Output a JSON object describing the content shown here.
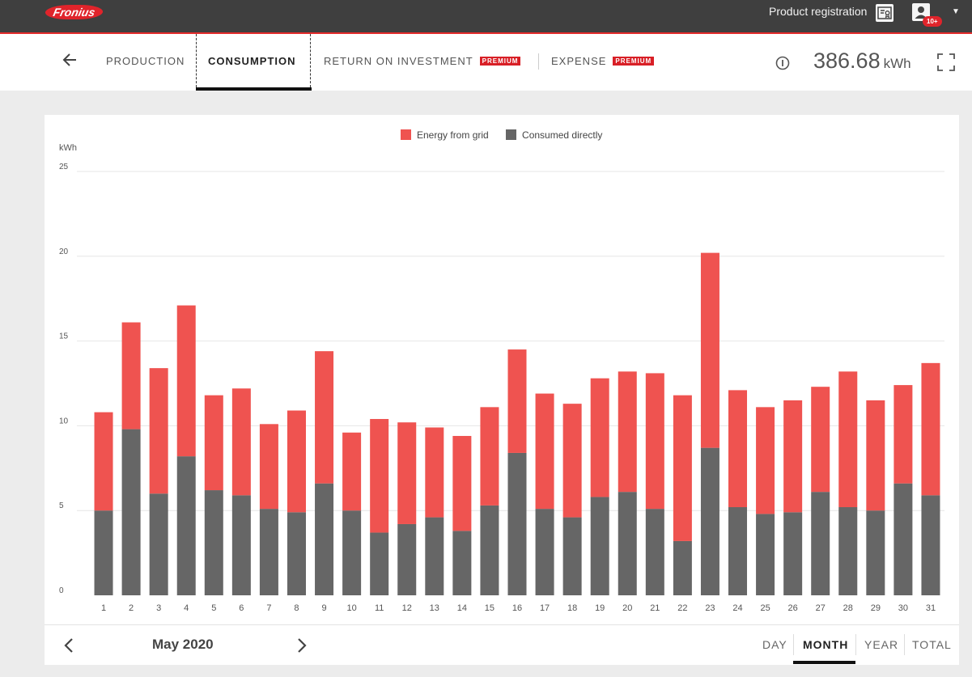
{
  "header": {
    "logo_text": "Fronius",
    "product_registration": "Product registration",
    "notification_badge": "10+"
  },
  "nav": {
    "tabs": [
      {
        "label": "PRODUCTION"
      },
      {
        "label": "CONSUMPTION"
      },
      {
        "label": "RETURN ON INVESTMENT",
        "badge": "PREMIUM"
      },
      {
        "label": "EXPENSE",
        "badge": "PREMIUM"
      }
    ],
    "active_tab": "CONSUMPTION",
    "total_value": "386.68",
    "total_unit": "kWh"
  },
  "period": {
    "label": "May 2020",
    "options": [
      "DAY",
      "MONTH",
      "YEAR",
      "TOTAL"
    ],
    "active": "MONTH"
  },
  "colors": {
    "grid_energy": "#ef5350",
    "consumed_directly": "#666666",
    "brand_red": "#e0242b"
  },
  "chart_data": {
    "type": "bar",
    "stacked": true,
    "ylabel": "kWh",
    "ylim": [
      0,
      25
    ],
    "yticks": [
      0,
      5,
      10,
      15,
      20,
      25
    ],
    "legend_position": "top-center",
    "categories": [
      "1",
      "2",
      "3",
      "4",
      "5",
      "6",
      "7",
      "8",
      "9",
      "10",
      "11",
      "12",
      "13",
      "14",
      "15",
      "16",
      "17",
      "18",
      "19",
      "20",
      "21",
      "22",
      "23",
      "24",
      "25",
      "26",
      "27",
      "28",
      "29",
      "30",
      "31"
    ],
    "series": [
      {
        "name": "Consumed directly",
        "values": [
          5.0,
          9.8,
          6.0,
          8.2,
          6.2,
          5.9,
          5.1,
          4.9,
          6.6,
          5.0,
          3.7,
          4.2,
          4.6,
          3.8,
          5.3,
          8.4,
          5.1,
          4.6,
          5.8,
          6.1,
          5.1,
          3.2,
          8.7,
          5.2,
          4.8,
          4.9,
          6.1,
          5.2,
          5.0,
          6.6,
          5.9
        ]
      },
      {
        "name": "Energy from grid",
        "values": [
          5.8,
          6.3,
          7.4,
          8.9,
          5.6,
          6.3,
          5.0,
          6.0,
          7.8,
          4.6,
          6.7,
          6.0,
          5.3,
          5.6,
          5.8,
          6.1,
          6.8,
          6.7,
          7.0,
          7.1,
          8.0,
          8.6,
          11.5,
          6.9,
          6.3,
          6.6,
          6.2,
          8.0,
          6.5,
          5.8,
          7.8
        ]
      }
    ]
  }
}
